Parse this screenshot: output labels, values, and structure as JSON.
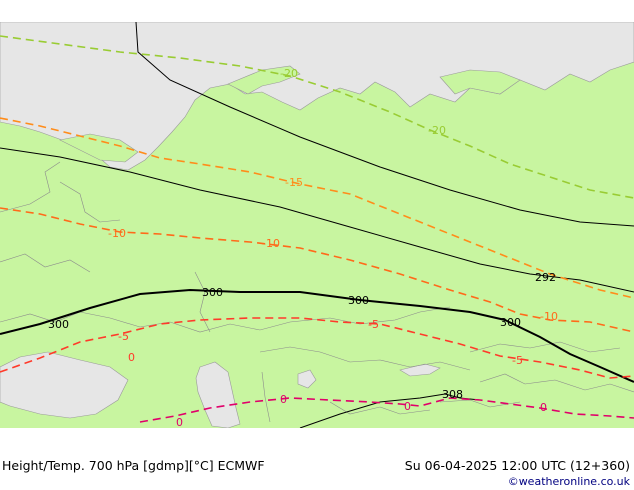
{
  "map": {
    "title": "Height/Temp. 700 hPa [gdmp][°C] ECMWF",
    "valid_time": "Su 06-04-2025 12:00 UTC (12+360)",
    "credit": "©weatheronline.co.uk",
    "colors": {
      "land": "#c8f5a0",
      "sea": "#e6e6e6",
      "height_contour": "#000000",
      "temp_cold": "#99cc33",
      "temp_mid": "#ff8c1a",
      "temp_warm": "#ff2a2a",
      "temp_zero": "#e0006a",
      "borders": "#888888"
    },
    "contour_labels": {
      "h292": "292",
      "h300_a": "300",
      "h300_b": "300",
      "h300_c": "300",
      "h300_d": "300",
      "h308": "308",
      "t_m20_a": "-20",
      "t_m20_b": "-20",
      "t_m15": "-15",
      "t_m10_a": "-10",
      "t_m10_b": "-10",
      "t_m10_c": "-10",
      "t_m5_a": "-5",
      "t_m5_b": "-5",
      "t_m5_c": "-5",
      "t_0_a": "0",
      "t_0_b": "0",
      "t_0_c": "0",
      "t_0_d": "0",
      "t_0_e": "0"
    }
  }
}
